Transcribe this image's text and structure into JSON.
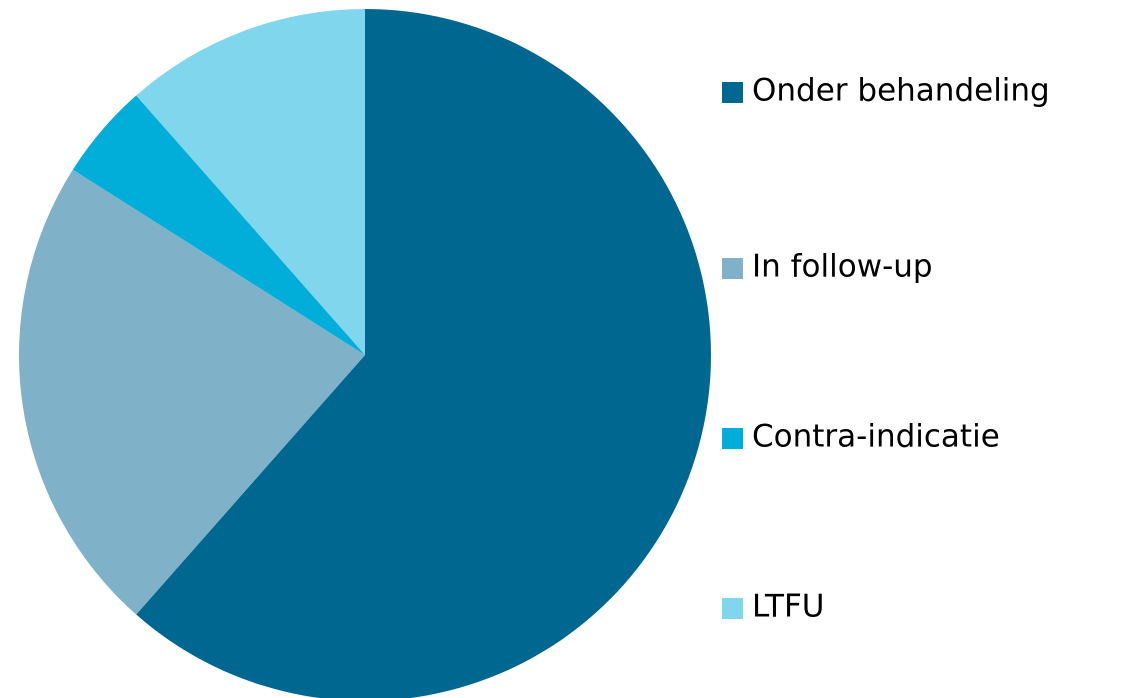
{
  "chart_data": {
    "type": "pie",
    "categories": [
      "Onder behandeling",
      "In follow-up",
      "Contra-indicatie",
      "LTFU"
    ],
    "values": [
      61.5,
      22.5,
      4.5,
      11.5
    ],
    "colors": [
      "#006890",
      "#7fb1c8",
      "#00aed9",
      "#7fd6ed"
    ],
    "legend": "right"
  }
}
